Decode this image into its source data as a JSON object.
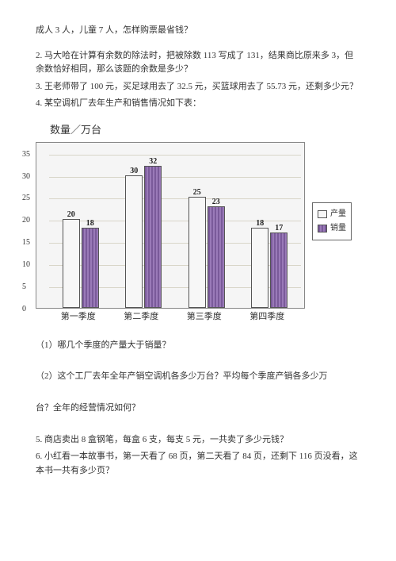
{
  "intro": "成人 3 人，儿童 7 人，怎样购票最省钱？",
  "q2": "2. 马大哈在计算有余数的除法时，把被除数 113 写成了 131，结果商比原来多 3，但余数恰好相同，那么该题的余数是多少？",
  "q3": "3. 王老师带了 100 元，买足球用去了 32.5 元，买篮球用去了 55.73 元，还剩多少元？",
  "q4": "4. 某空调机厂去年生产和销售情况如下表：",
  "chart": {
    "title": "数量／万台",
    "ymax": 35,
    "yticks": [
      0,
      5,
      10,
      15,
      20,
      25,
      30,
      35
    ],
    "categories": [
      "第一季度",
      "第二季度",
      "第三季度",
      "第四季度"
    ],
    "prod": [
      20,
      30,
      25,
      18
    ],
    "sales": [
      18,
      32,
      23,
      17
    ],
    "legend_prod": "产量",
    "legend_sales": "销量"
  },
  "sub1": "（1）哪几个季度的产量大于销量？",
  "sub2": "（2）这个工厂去年全年产销空调机各多少万台？平均每个季度产销各多少万",
  "sub2b": "台？全年的经营情况如何？",
  "q5": "5. 商店卖出 8 盒钢笔，每盒 6 支，每支 5 元，一共卖了多少元钱？",
  "q6": "6. 小红看一本故事书，第一天看了 68 页，第二天看了 84 页，还剩下 116 页没看，这本书一共有多少页？"
}
